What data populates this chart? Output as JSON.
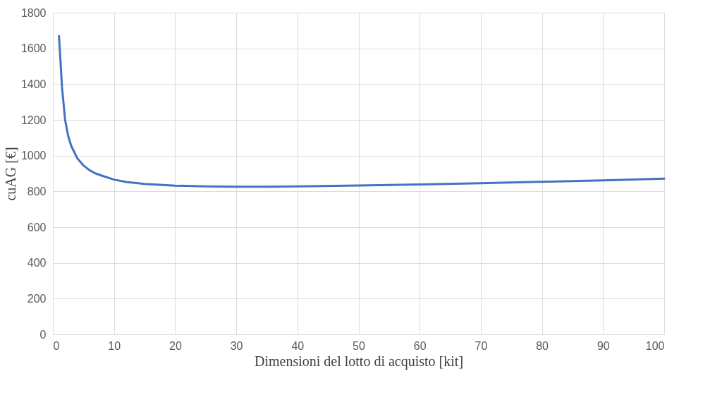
{
  "chart_data": {
    "type": "line",
    "xlabel": "Dimensioni del lotto di acquisto [kit]",
    "ylabel": "cuAG [€]",
    "x": [
      1,
      1.5,
      2,
      2.5,
      3,
      4,
      5,
      6,
      7,
      8,
      10,
      12,
      15,
      20,
      25,
      30,
      35,
      40,
      50,
      60,
      70,
      80,
      90,
      100
    ],
    "series": [
      {
        "color": "#4472c4",
        "values": [
          1670,
          1380,
          1200,
          1110,
          1055,
          985,
          945,
          918,
          900,
          888,
          866,
          853,
          842,
          832,
          828,
          826,
          826,
          828,
          833,
          839,
          846,
          854,
          862,
          871
        ]
      }
    ],
    "xlim": [
      0,
      100
    ],
    "xticks": [
      0,
      10,
      20,
      30,
      40,
      50,
      60,
      70,
      80,
      90,
      100
    ],
    "ylim": [
      0,
      1800
    ],
    "yticks": [
      0,
      200,
      400,
      600,
      800,
      1000,
      1200,
      1400,
      1600,
      1800
    ],
    "grid": true,
    "legend": false,
    "marker": "none",
    "line_style": "solid"
  }
}
